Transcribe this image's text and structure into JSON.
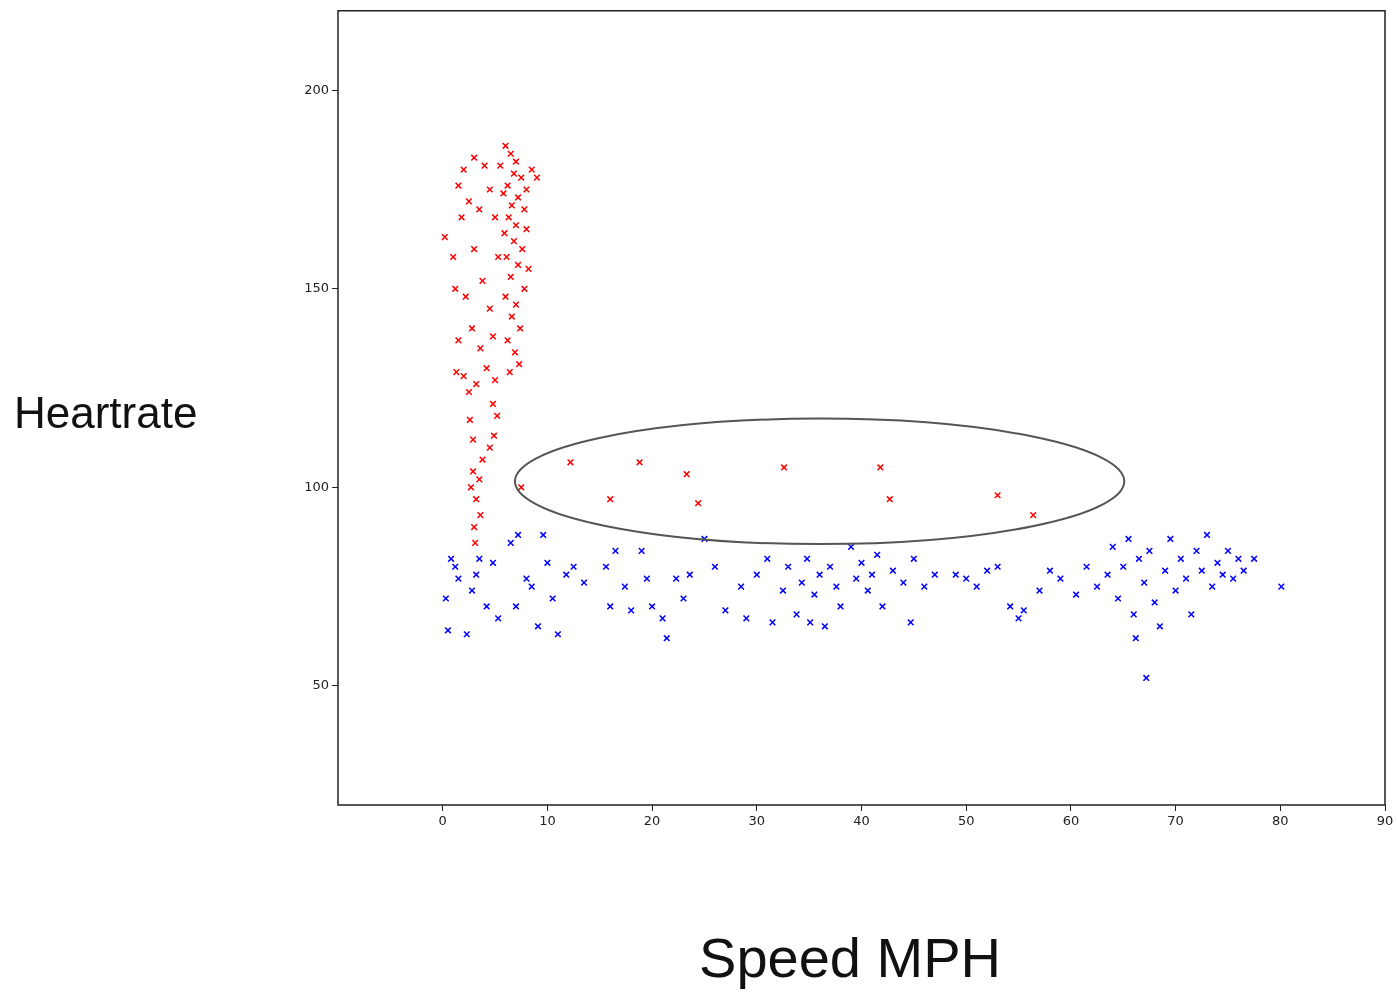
{
  "chart_data": {
    "type": "scatter",
    "xlabel": "Speed MPH",
    "ylabel": "Heartrate",
    "xlim": [
      -10,
      90
    ],
    "xticks": [
      0,
      10,
      20,
      30,
      40,
      50,
      60,
      70,
      80,
      90
    ],
    "ylim": [
      20,
      220
    ],
    "yticks": [
      50,
      100,
      150,
      200
    ],
    "grid": false,
    "legend": false,
    "marker": "cross",
    "series": [
      {
        "color": "#ff0000",
        "x": [
          6,
          6.5,
          7,
          5.5,
          6.8,
          7.5,
          6.2,
          5.8,
          7.2,
          6.6,
          8.5,
          9,
          8,
          7.8,
          6.3,
          7,
          5.9,
          6.8,
          7.6,
          6.1,
          7.2,
          6.5,
          7.8,
          6,
          7,
          6.6,
          7.4,
          6.2,
          6.9,
          7.3,
          6.4,
          8,
          8.2,
          5,
          5.3,
          0.2,
          1,
          1.5,
          2,
          3,
          4,
          2.5,
          1.8,
          3.5,
          4.5,
          1.2,
          2.2,
          3,
          3.8,
          4.5,
          2.8,
          1.5,
          3.6,
          4.8,
          2,
          1.3,
          3.2,
          4.2,
          2.5,
          5,
          2.6,
          2.9,
          4.8,
          5.2,
          4.9,
          2.9,
          3.5,
          2.7,
          3.2,
          3.6,
          3,
          3.1,
          4.5,
          3.8,
          7.5,
          12.2,
          16,
          18.8,
          23.3,
          24.4,
          32.6,
          41.8,
          42.7,
          53,
          56.4
        ],
        "values": [
          186,
          184,
          182,
          181,
          179,
          178,
          176,
          174,
          173,
          171,
          180,
          178,
          175,
          170,
          168,
          166,
          164,
          162,
          160,
          158,
          156,
          153,
          150,
          148,
          146,
          143,
          140,
          137,
          134,
          131,
          129,
          165,
          155,
          168,
          158,
          163,
          158,
          176,
          180,
          183,
          181,
          172,
          168,
          170,
          175,
          150,
          148,
          160,
          152,
          145,
          140,
          137,
          135,
          138,
          128,
          129,
          126,
          130,
          124,
          127,
          117,
          112,
          121,
          118,
          113,
          104,
          102,
          100,
          97,
          93,
          90,
          86,
          110,
          107,
          100,
          106.3,
          97,
          106.3,
          103.3,
          96,
          105,
          105,
          97,
          98,
          93
        ]
      },
      {
        "color": "#0000ff",
        "x": [
          0.3,
          0.5,
          0.8,
          1.2,
          1.5,
          2.3,
          2.8,
          3.2,
          3.5,
          4.2,
          4.8,
          5.3,
          6.5,
          7,
          7.2,
          8,
          8.5,
          9.1,
          9.6,
          10,
          10.5,
          11,
          11.8,
          12.5,
          13.5,
          15.6,
          16,
          16.5,
          17.4,
          18,
          19,
          19.5,
          20,
          21,
          21.4,
          22.3,
          23,
          23.6,
          25,
          26,
          27,
          28.5,
          29,
          30,
          31,
          31.5,
          32.5,
          33,
          33.8,
          34.3,
          34.8,
          35.1,
          35.5,
          36,
          36.5,
          37,
          37.6,
          38,
          39,
          39.5,
          40,
          40.6,
          41,
          41.5,
          42,
          43,
          44,
          44.7,
          45,
          46,
          47,
          49,
          50,
          51,
          52,
          53,
          54.2,
          55,
          55.5,
          57,
          58,
          59,
          60.5,
          61.5,
          62.5,
          63.5,
          64,
          64.5,
          65,
          65.5,
          66,
          66.2,
          66.5,
          67,
          67.2,
          67.5,
          68,
          68.5,
          69,
          69.5,
          70,
          70.5,
          71,
          71.5,
          72,
          72.5,
          73,
          73.5,
          74,
          74.5,
          75,
          75.5,
          76,
          76.5,
          77.5,
          80.1
        ],
        "values": [
          72,
          64,
          82,
          80,
          77,
          63,
          74,
          78,
          82,
          70,
          81,
          67,
          86,
          70,
          88,
          77,
          75,
          65,
          88,
          81,
          72,
          63,
          78,
          80,
          76,
          80,
          70,
          84,
          75,
          69,
          84,
          77,
          70,
          67,
          62,
          77,
          72,
          78,
          87,
          80,
          69,
          75,
          67,
          78,
          82,
          66,
          74,
          80,
          68,
          76,
          82,
          66,
          73,
          78,
          65,
          80,
          75,
          70,
          85,
          77,
          81,
          74,
          78,
          83,
          70,
          79,
          76,
          66,
          82,
          75,
          78,
          78,
          77,
          75,
          79,
          80,
          70,
          67,
          69,
          74,
          79,
          77,
          73,
          80,
          75,
          78,
          85,
          72,
          80,
          87,
          68,
          62,
          82,
          76,
          52,
          84,
          71,
          65,
          79,
          87,
          74,
          82,
          77,
          68,
          84,
          79,
          88,
          75,
          81,
          78,
          84,
          77,
          82,
          79,
          82,
          75
        ]
      }
    ]
  }
}
